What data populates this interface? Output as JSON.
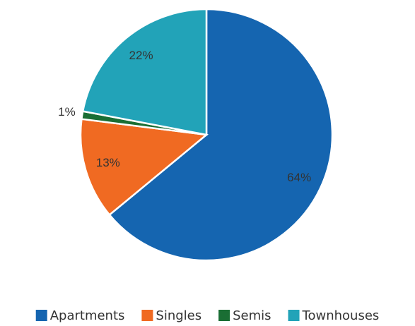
{
  "chart_data": {
    "type": "pie",
    "categories": [
      "Apartments",
      "Singles",
      "Semis",
      "Townhouses"
    ],
    "values": [
      64,
      13,
      1,
      22
    ],
    "value_labels": [
      "64%",
      "13%",
      "1%",
      "22%"
    ],
    "colors": [
      "#1565b0",
      "#f06a22",
      "#1a6e34",
      "#22a3b8"
    ],
    "legend": "bottom"
  }
}
